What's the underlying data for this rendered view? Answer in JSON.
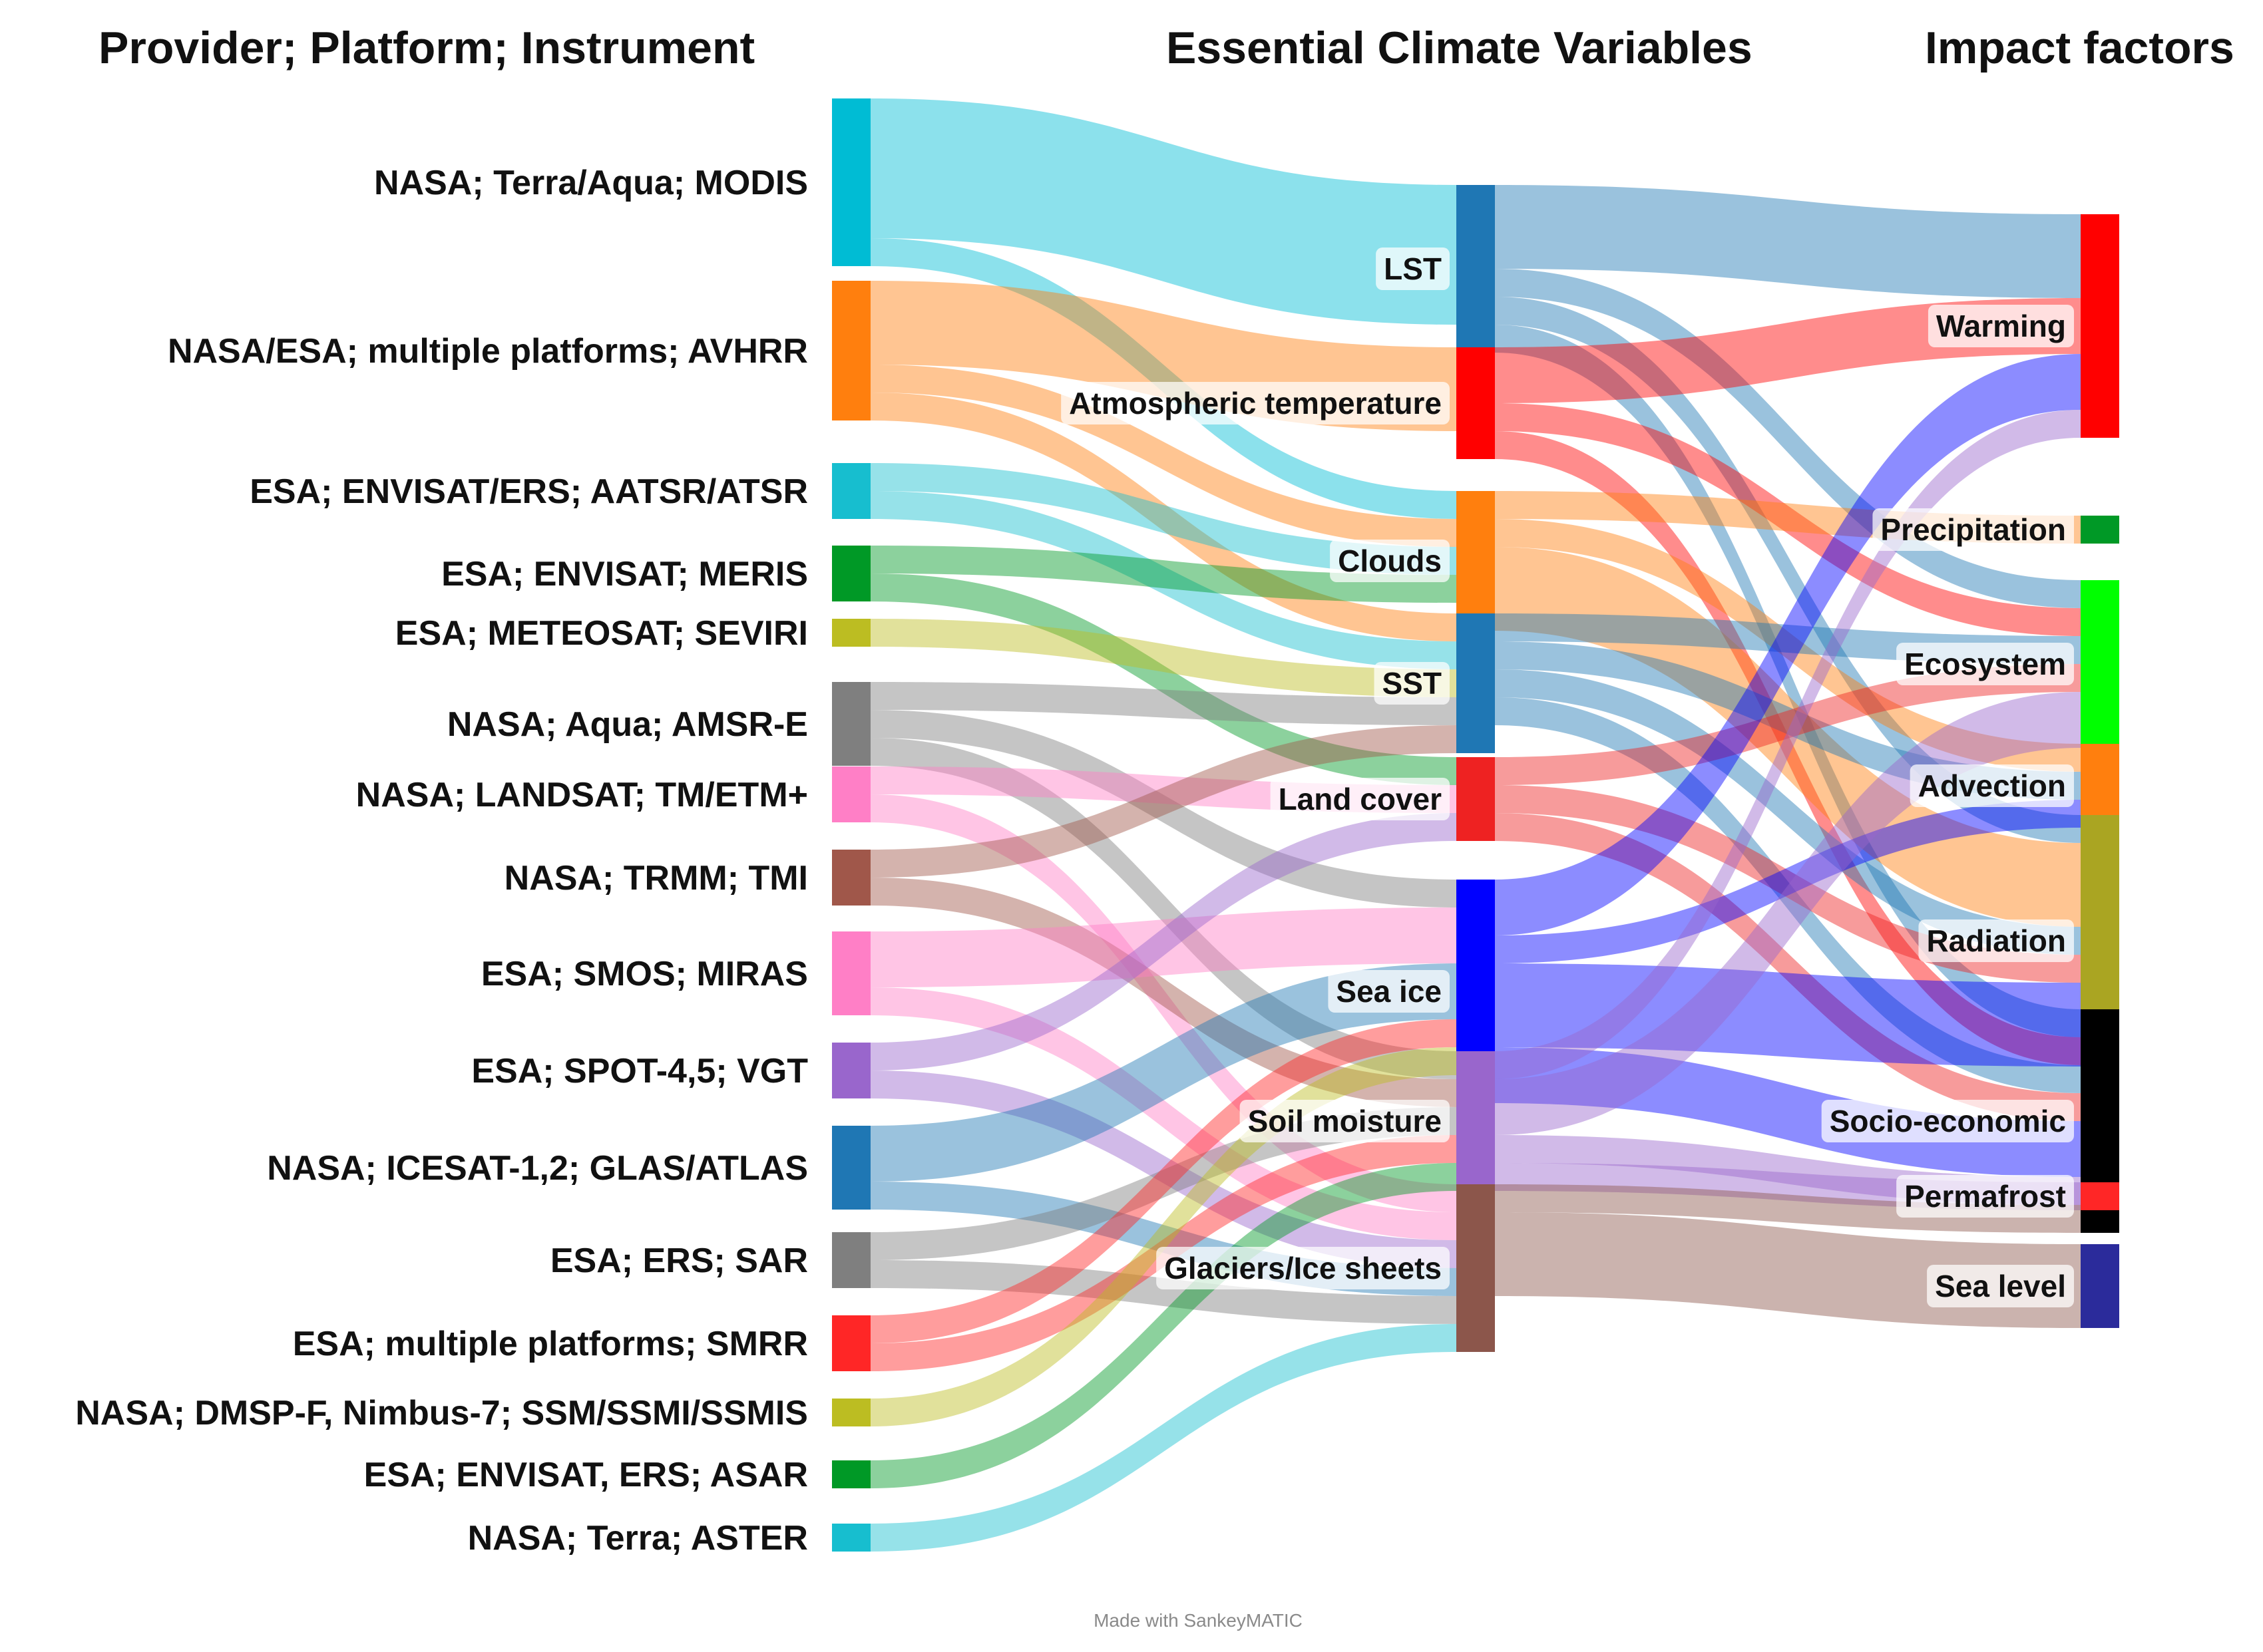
{
  "headers": {
    "sources": "Provider; Platform; Instrument",
    "variables": "Essential Climate Variables",
    "impacts": "Impact factors"
  },
  "footer": "Made with SankeyMATIC",
  "sources": [
    {
      "id": "modis",
      "label": "NASA; Terra/Aqua; MODIS",
      "color": "#00bcd4"
    },
    {
      "id": "avhrr",
      "label": "NASA/ESA; multiple platforms; AVHRR",
      "color": "#ff7f0e"
    },
    {
      "id": "aatsr",
      "label": "ESA; ENVISAT/ERS; AATSR/ATSR",
      "color": "#17becf"
    },
    {
      "id": "meris",
      "label": "ESA; ENVISAT; MERIS",
      "color": "#009926"
    },
    {
      "id": "seviri",
      "label": "ESA; METEOSAT; SEVIRI",
      "color": "#bcbd22"
    },
    {
      "id": "amsre",
      "label": "NASA; Aqua; AMSR-E",
      "color": "#7f7f7f"
    },
    {
      "id": "landsat",
      "label": "NASA; LANDSAT; TM/ETM+",
      "color": "#ff7fc6"
    },
    {
      "id": "trmm",
      "label": "NASA; TRMM; TMI",
      "color": "#a0574a"
    },
    {
      "id": "smos",
      "label": "ESA; SMOS; MIRAS",
      "color": "#ff7fc6"
    },
    {
      "id": "spot",
      "label": "ESA; SPOT-4,5; VGT",
      "color": "#9966cc"
    },
    {
      "id": "icesat",
      "label": "NASA; ICESAT-1,2; GLAS/ATLAS",
      "color": "#1f77b4"
    },
    {
      "id": "ers_sar",
      "label": "ESA; ERS; SAR",
      "color": "#7f7f7f"
    },
    {
      "id": "smrr",
      "label": "ESA; multiple platforms; SMRR",
      "color": "#ff2626"
    },
    {
      "id": "ssmi",
      "label": "NASA; DMSP-F, Nimbus-7; SSM/SSMI/SSMIS",
      "color": "#bcbd22"
    },
    {
      "id": "asar",
      "label": "ESA; ENVISAT, ERS; ASAR",
      "color": "#009926"
    },
    {
      "id": "aster",
      "label": "NASA; Terra; ASTER",
      "color": "#17becf"
    }
  ],
  "variables": [
    {
      "id": "lst",
      "label": "LST",
      "color": "#1f77b4"
    },
    {
      "id": "atmos",
      "label": "Atmospheric temperature",
      "color": "#ff0000"
    },
    {
      "id": "clouds",
      "label": "Clouds",
      "color": "#ff7f0e"
    },
    {
      "id": "sst",
      "label": "SST",
      "color": "#1f77b4"
    },
    {
      "id": "land",
      "label": "Land cover",
      "color": "#ee2222"
    },
    {
      "id": "seaice",
      "label": "Sea ice",
      "color": "#0000ff"
    },
    {
      "id": "soil",
      "label": "Soil moisture",
      "color": "#9966cc"
    },
    {
      "id": "glacier",
      "label": "Glaciers/Ice sheets",
      "color": "#8c564b"
    }
  ],
  "impacts": [
    {
      "id": "warming",
      "label": "Warming",
      "color": "#ff0000"
    },
    {
      "id": "precip",
      "label": "Precipitation",
      "color": "#009926"
    },
    {
      "id": "eco",
      "label": "Ecosystem",
      "color": "#00ff00"
    },
    {
      "id": "advect",
      "label": "Advection",
      "color": "#ff7f0e"
    },
    {
      "id": "rad",
      "label": "Radiation",
      "color": "#aaa522"
    },
    {
      "id": "socio",
      "label": "Socio-economic",
      "color": "#000000"
    },
    {
      "id": "perma",
      "label": "Permafrost",
      "color": "#ff2626"
    },
    {
      "id": "sealevel",
      "label": "Sea level",
      "color": "#2b2b9b"
    }
  ],
  "flows_stage1": [
    [
      "modis",
      "lst",
      5
    ],
    [
      "modis",
      "clouds",
      1
    ],
    [
      "avhrr",
      "atmos",
      3
    ],
    [
      "avhrr",
      "clouds",
      1
    ],
    [
      "avhrr",
      "sst",
      1
    ],
    [
      "aatsr",
      "clouds",
      1
    ],
    [
      "aatsr",
      "sst",
      1
    ],
    [
      "meris",
      "clouds",
      1
    ],
    [
      "meris",
      "land",
      1
    ],
    [
      "seviri",
      "sst",
      1
    ],
    [
      "amsre",
      "sst",
      1
    ],
    [
      "amsre",
      "seaice",
      1
    ],
    [
      "amsre",
      "soil",
      1
    ],
    [
      "landsat",
      "land",
      1
    ],
    [
      "landsat",
      "glacier",
      1
    ],
    [
      "trmm",
      "sst",
      1
    ],
    [
      "trmm",
      "soil",
      1
    ],
    [
      "smos",
      "seaice",
      2
    ],
    [
      "smos",
      "glacier",
      1
    ],
    [
      "spot",
      "land",
      1
    ],
    [
      "spot",
      "glacier",
      1
    ],
    [
      "icesat",
      "seaice",
      2
    ],
    [
      "icesat",
      "glacier",
      1
    ],
    [
      "ers_sar",
      "soil",
      1
    ],
    [
      "ers_sar",
      "glacier",
      1
    ],
    [
      "smrr",
      "seaice",
      1
    ],
    [
      "smrr",
      "soil",
      1
    ],
    [
      "ssmi",
      "seaice",
      1
    ],
    [
      "asar",
      "soil",
      1
    ],
    [
      "aster",
      "glacier",
      1
    ]
  ],
  "flows_stage2": [
    [
      "lst",
      "warming",
      3
    ],
    [
      "lst",
      "eco",
      1
    ],
    [
      "lst",
      "rad",
      1
    ],
    [
      "lst",
      "socio",
      1
    ],
    [
      "atmos",
      "warming",
      2
    ],
    [
      "atmos",
      "eco",
      1
    ],
    [
      "atmos",
      "socio",
      1
    ],
    [
      "clouds",
      "precip",
      1
    ],
    [
      "clouds",
      "advect",
      1
    ],
    [
      "clouds",
      "rad",
      3
    ],
    [
      "sst",
      "eco",
      1
    ],
    [
      "sst",
      "advect",
      1
    ],
    [
      "sst",
      "rad",
      1
    ],
    [
      "sst",
      "socio",
      1
    ],
    [
      "land",
      "eco",
      1
    ],
    [
      "land",
      "rad",
      1
    ],
    [
      "land",
      "socio",
      1
    ],
    [
      "seaice",
      "warming",
      2
    ],
    [
      "seaice",
      "advect",
      1
    ],
    [
      "seaice",
      "rad",
      3
    ],
    [
      "seaice",
      "socio",
      2
    ],
    [
      "soil",
      "warming",
      1
    ],
    [
      "soil",
      "eco",
      2
    ],
    [
      "soil",
      "socio",
      1
    ],
    [
      "soil",
      "perma",
      1
    ],
    [
      "glacier",
      "socio",
      1
    ],
    [
      "glacier",
      "sealevel",
      3
    ]
  ]
}
